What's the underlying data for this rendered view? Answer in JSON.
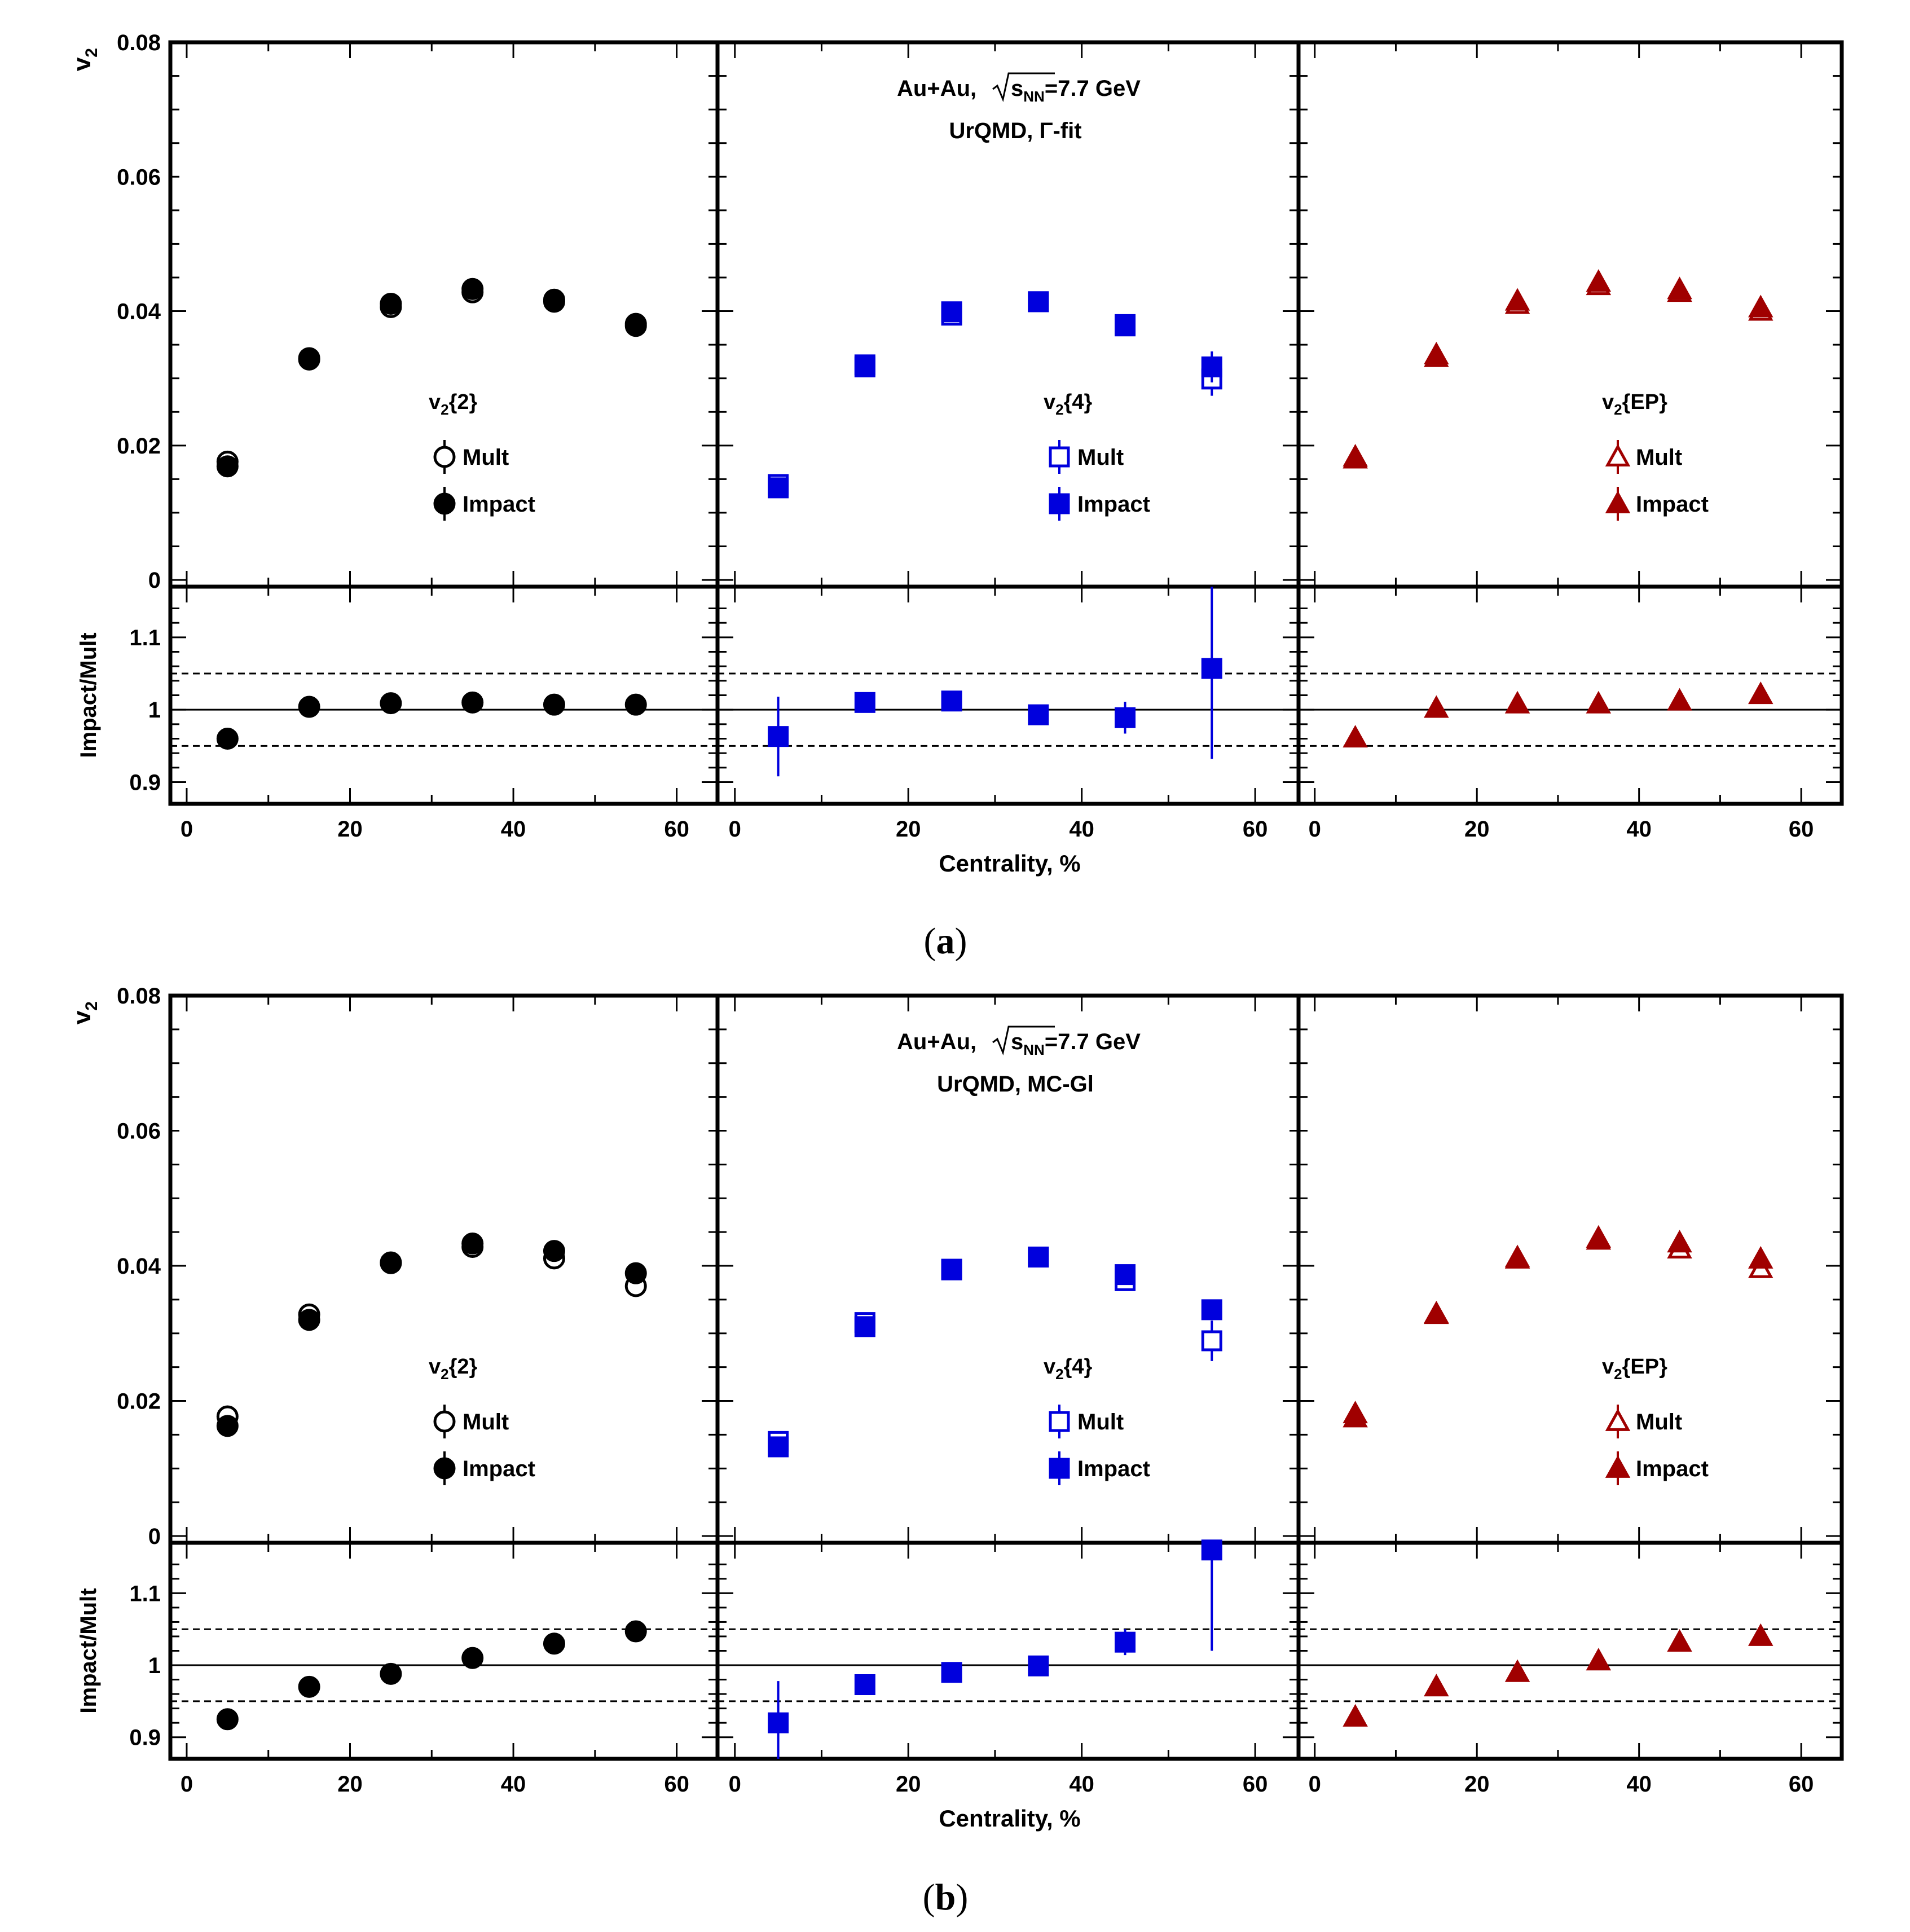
{
  "colors": {
    "v2_2": "#000000",
    "v2_4": "#0000dd",
    "v2_EP": "#a00000"
  },
  "shared": {
    "ylabel_top": "v2",
    "ylabel_top_sub": "2",
    "ylabel_bottom": "Impact/Mult",
    "xlabel": "Centrality, %",
    "y_ticks_top": [
      "0",
      "0.02",
      "0.04",
      "0.06",
      "0.08"
    ],
    "y_ticks_bottom": [
      "0.9",
      "1",
      "1.1"
    ],
    "x_ticks": [
      "0",
      "20",
      "40",
      "60"
    ],
    "legend_mult": "Mult",
    "legend_impact": "Impact",
    "panel_titles": [
      {
        "main": "v",
        "sub": "2",
        "rest": "{2}"
      },
      {
        "main": "v",
        "sub": "2",
        "rest": "{4}"
      },
      {
        "main": "v",
        "sub": "2",
        "rest": "{EP}"
      }
    ],
    "collision_prefix": "Au+Au,",
    "sqrt_s": "s",
    "sqrt_sub": "NN",
    "energy": "=7.7 GeV"
  },
  "chart_data": [
    {
      "type": "scatter",
      "caption_label": "a",
      "model": "UrQMD,",
      "model_fit": "Γ-fit",
      "xlim": [
        -2,
        65
      ],
      "ylim_top": [
        -0.001,
        0.08
      ],
      "ylim_bottom": [
        0.87,
        1.17
      ],
      "x": [
        5,
        15,
        25,
        35,
        45,
        55
      ],
      "panels": [
        {
          "name": "v2{2}",
          "marker": "circle",
          "mult": [
            0.0176,
            0.0328,
            0.0406,
            0.0428,
            0.0414,
            0.0378
          ],
          "mult_err": [
            0.0004,
            0.0004,
            0.0004,
            0.0004,
            0.0004,
            0.0004
          ],
          "impact": [
            0.0169,
            0.033,
            0.0411,
            0.0433,
            0.0417,
            0.0381
          ],
          "impact_err": [
            0.0004,
            0.0004,
            0.0004,
            0.0004,
            0.0004,
            0.0004
          ],
          "ratio": [
            0.96,
            1.004,
            1.009,
            1.01,
            1.007,
            1.007
          ],
          "ratio_err": [
            0.003,
            0.003,
            0.003,
            0.003,
            0.003,
            0.003
          ]
        },
        {
          "name": "v2{4}",
          "marker": "square",
          "mult": [
            0.0142,
            0.0317,
            0.0394,
            0.0414,
            0.038,
            0.0299
          ],
          "mult_err": [
            0.0004,
            0.0004,
            0.0004,
            0.0004,
            0.0004,
            0.0025
          ],
          "impact": [
            0.0137,
            0.032,
            0.0399,
            0.0414,
            0.0378,
            0.0317
          ],
          "impact_err": [
            0.0004,
            0.0004,
            0.0004,
            0.0004,
            0.0004,
            0.0023
          ],
          "ratio": [
            0.963,
            1.01,
            1.012,
            0.993,
            0.989,
            1.057
          ],
          "ratio_err": [
            0.055,
            0.004,
            0.004,
            0.004,
            0.022,
            0.125
          ]
        },
        {
          "name": "v2{EP}",
          "marker": "triangle",
          "mult": [
            0.018,
            0.0331,
            0.041,
            0.0438,
            0.0428,
            0.04
          ],
          "mult_err": [
            0.0004,
            0.0004,
            0.0004,
            0.0004,
            0.0004,
            0.0004
          ],
          "impact": [
            0.0183,
            0.0335,
            0.0415,
            0.0443,
            0.0432,
            0.0405
          ],
          "impact_err": [
            0.0004,
            0.0004,
            0.0004,
            0.0004,
            0.0004,
            0.0004
          ],
          "ratio": [
            0.961,
            1.002,
            1.008,
            1.008,
            1.012,
            1.021
          ],
          "ratio_err": [
            0.003,
            0.003,
            0.003,
            0.003,
            0.003,
            0.003
          ]
        }
      ]
    },
    {
      "type": "scatter",
      "caption_label": "b",
      "model": "UrQMD,",
      "model_fit": "MC-Gl",
      "xlim": [
        -2,
        65
      ],
      "ylim_top": [
        -0.001,
        0.08
      ],
      "ylim_bottom": [
        0.87,
        1.17
      ],
      "x": [
        5,
        15,
        25,
        35,
        45,
        55
      ],
      "panels": [
        {
          "name": "v2{2}",
          "marker": "circle",
          "mult": [
            0.0177,
            0.0328,
            0.0404,
            0.0428,
            0.0411,
            0.037
          ],
          "mult_err": [
            0.0004,
            0.0004,
            0.0004,
            0.0004,
            0.0004,
            0.0004
          ],
          "impact": [
            0.0163,
            0.032,
            0.0405,
            0.0433,
            0.0422,
            0.0389
          ],
          "impact_err": [
            0.0004,
            0.0004,
            0.0004,
            0.0004,
            0.0004,
            0.0004
          ],
          "ratio": [
            0.925,
            0.97,
            0.988,
            1.01,
            1.03,
            1.047
          ],
          "ratio_err": [
            0.003,
            0.003,
            0.003,
            0.003,
            0.003,
            0.003
          ]
        },
        {
          "name": "v2{4}",
          "marker": "square",
          "mult": [
            0.014,
            0.0316,
            0.0394,
            0.0413,
            0.0378,
            0.0289
          ],
          "mult_err": [
            0.0004,
            0.0004,
            0.0004,
            0.0004,
            0.0004,
            0.003
          ],
          "impact": [
            0.0132,
            0.031,
            0.0395,
            0.0413,
            0.0387,
            0.0335
          ],
          "impact_err": [
            0.0004,
            0.0004,
            0.0004,
            0.0004,
            0.0004,
            0.001
          ],
          "ratio": [
            0.92,
            0.973,
            0.99,
            0.999,
            1.032,
            1.16
          ],
          "ratio_err": [
            0.058,
            0.004,
            0.004,
            0.004,
            0.018,
            0.14
          ]
        },
        {
          "name": "v2{EP}",
          "marker": "triangle",
          "mult": [
            0.0181,
            0.0328,
            0.041,
            0.0438,
            0.0425,
            0.0396
          ],
          "mult_err": [
            0.0004,
            0.0004,
            0.0004,
            0.0004,
            0.0004,
            0.0004
          ],
          "impact": [
            0.0175,
            0.0329,
            0.0412,
            0.0441,
            0.0434,
            0.041
          ],
          "impact_err": [
            0.0004,
            0.0004,
            0.0004,
            0.0004,
            0.0004,
            0.0004
          ],
          "ratio": [
            0.928,
            0.97,
            0.99,
            1.006,
            1.032,
            1.04
          ],
          "ratio_err": [
            0.003,
            0.003,
            0.003,
            0.003,
            0.003,
            0.003
          ]
        }
      ]
    }
  ]
}
